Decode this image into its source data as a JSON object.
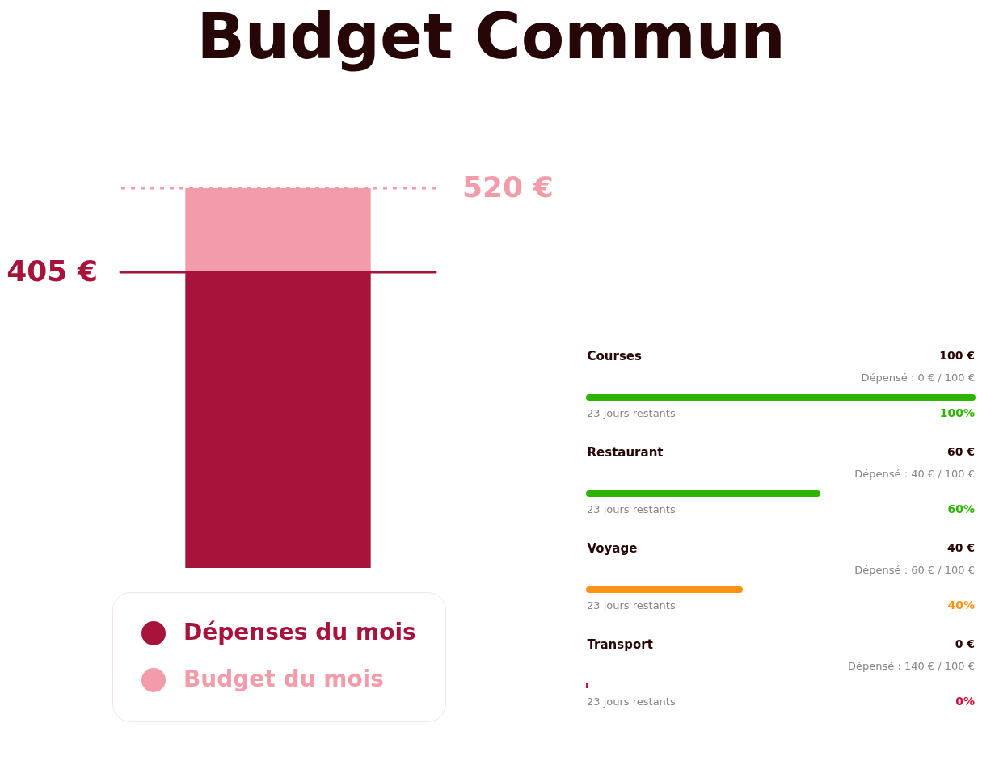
{
  "chart_data": [
    {
      "type": "bar",
      "title": "Budget Commun",
      "categories": [
        null
      ],
      "stacked": true,
      "series": [
        {
          "name": "Dépenses du mois",
          "color": "#a8133c",
          "values": [
            405
          ]
        },
        {
          "name": "Budget du mois",
          "color": "#f29ca9",
          "values": [
            115
          ]
        }
      ],
      "ylim": [
        0,
        520
      ],
      "tick_labels": false,
      "legend": "bottom",
      "ref_lines": [
        {
          "axis": "y",
          "value": 405,
          "label": "405 €",
          "color": "#a8133c",
          "line_style": "solid"
        },
        {
          "axis": "y",
          "value": 520,
          "label": "520 €",
          "color": "#f29ca9",
          "line_style": "dotted"
        }
      ]
    },
    {
      "type": "bar",
      "orientation": "horizontal",
      "categories": [
        "Courses",
        "Restaurant",
        "Voyage",
        "Transport"
      ],
      "values": [
        100,
        60,
        40,
        0
      ],
      "colors": [
        "#2db400",
        "#2db400",
        "#ff9216",
        "#d0103a"
      ],
      "value_labels": [
        "100%",
        "60%",
        "40%",
        "0%"
      ],
      "xlim": [
        0,
        100
      ],
      "tick_labels": "y",
      "annotations": [
        "100 €",
        "Dépensé : 0 € / 100 €",
        "23 jours restants",
        "60 €",
        "Dépensé : 40 € / 100 €",
        "23 jours restants",
        "40 €",
        "Dépensé : 60 € / 100 €",
        "23 jours restants",
        "0 €",
        "Dépensé : 140 € / 100 €",
        "23 jours restants"
      ]
    }
  ]
}
